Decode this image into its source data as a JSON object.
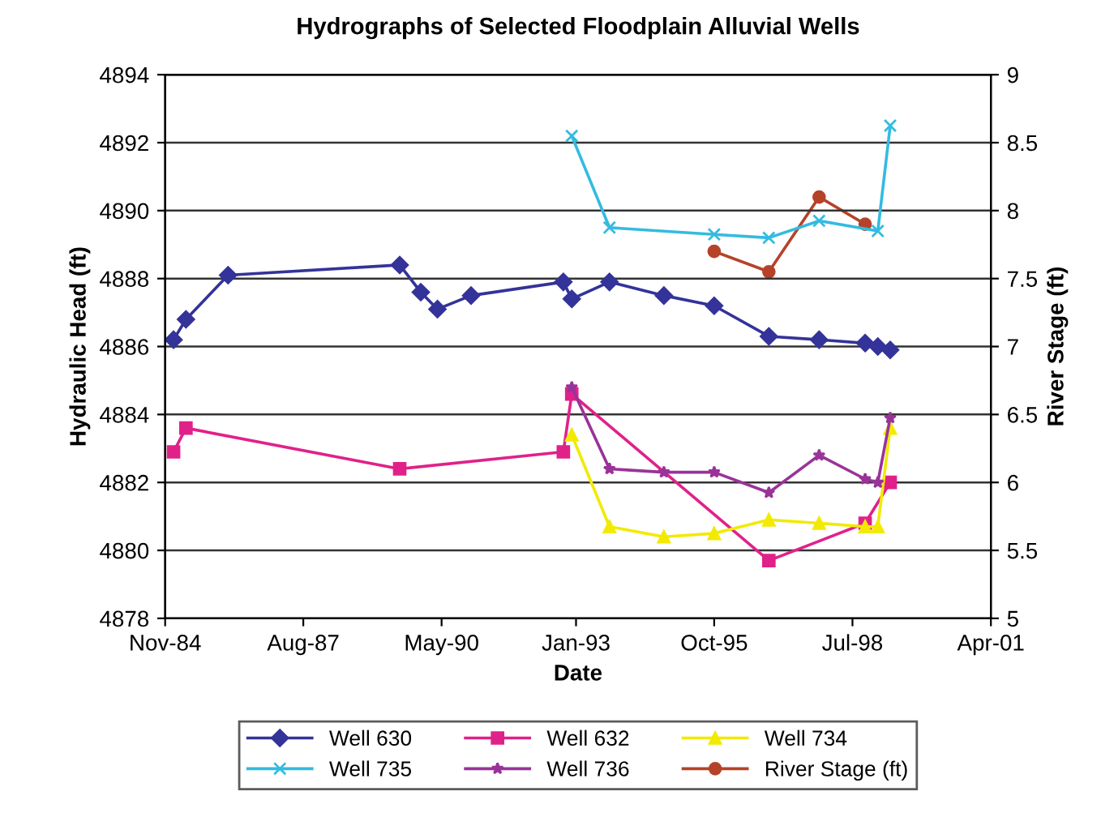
{
  "chart_data": {
    "type": "line",
    "title": "Hydrographs of Selected Floodplain Alluvial Wells",
    "xlabel": "Date",
    "ylabel": "Hydraulic Head (ft)",
    "y2label": "River Stage (ft)",
    "xlim": [
      "1984-11-01",
      "2001-04-01"
    ],
    "xticks": [
      {
        "value": "1984-11-01",
        "label": "Nov-84"
      },
      {
        "value": "1987-08-01",
        "label": "Aug-87"
      },
      {
        "value": "1990-05-01",
        "label": "May-90"
      },
      {
        "value": "1993-01-01",
        "label": "Jan-93"
      },
      {
        "value": "1995-10-01",
        "label": "Oct-95"
      },
      {
        "value": "1998-07-01",
        "label": "Jul-98"
      },
      {
        "value": "2001-04-01",
        "label": "Apr-01"
      }
    ],
    "ylim": [
      4878,
      4894
    ],
    "yticks": [
      4878,
      4880,
      4882,
      4884,
      4886,
      4888,
      4890,
      4892,
      4894
    ],
    "y2lim": [
      5,
      9
    ],
    "y2ticks": [
      5,
      5.5,
      6,
      6.5,
      7,
      7.5,
      8,
      8.5,
      9
    ],
    "grid": "y",
    "legend": "bottom",
    "line_style": "solid",
    "series": [
      {
        "name": "Well 630",
        "color": "#333399",
        "marker": "diamond",
        "x": [
          "1985-01",
          "1985-04",
          "1986-02",
          "1989-07",
          "1989-12",
          "1990-04",
          "1990-12",
          "1992-10",
          "1992-12",
          "1993-09",
          "1994-10",
          "1995-10",
          "1996-11",
          "1997-11",
          "1998-10",
          "1999-01",
          "1999-04"
        ],
        "values": [
          4886.2,
          4886.8,
          4888.1,
          4888.4,
          4887.6,
          4887.1,
          4887.5,
          4887.9,
          4887.4,
          4887.9,
          4887.5,
          4887.2,
          4886.3,
          4886.2,
          4886.1,
          4886.0,
          4885.9
        ]
      },
      {
        "name": "Well 632",
        "color": "#e0218a",
        "marker": "square",
        "x": [
          "1985-01",
          "1985-04",
          "1989-07",
          "1992-10",
          "1992-12",
          "1996-11",
          "1998-10",
          "1999-04"
        ],
        "values": [
          4882.9,
          4883.6,
          4882.4,
          4882.9,
          4884.6,
          4879.7,
          4880.8,
          4882.0
        ]
      },
      {
        "name": "Well 734",
        "color": "#f2ea00",
        "marker": "triangle",
        "x": [
          "1992-12",
          "1993-09",
          "1994-10",
          "1995-10",
          "1996-11",
          "1997-11",
          "1998-10",
          "1999-01",
          "1999-04"
        ],
        "values": [
          4883.4,
          4880.7,
          4880.4,
          4880.5,
          4880.9,
          4880.8,
          4880.7,
          4880.7,
          4883.6
        ]
      },
      {
        "name": "Well 735",
        "color": "#33bbe0",
        "marker": "cross",
        "x": [
          "1992-12",
          "1993-09",
          "1995-10",
          "1996-11",
          "1997-11",
          "1999-01",
          "1999-04"
        ],
        "values": [
          4892.2,
          4889.5,
          4889.3,
          4889.2,
          4889.7,
          4889.4,
          4892.5
        ]
      },
      {
        "name": "Well 736",
        "color": "#993399",
        "marker": "star",
        "x": [
          "1992-12",
          "1993-09",
          "1994-10",
          "1995-10",
          "1996-11",
          "1997-11",
          "1998-10",
          "1999-01",
          "1999-04"
        ],
        "values": [
          4884.8,
          4882.4,
          4882.3,
          4882.3,
          4881.7,
          4882.8,
          4882.1,
          4882.0,
          4883.9
        ]
      },
      {
        "name": "River Stage (ft)",
        "color": "#b5432a",
        "marker": "circle",
        "axis": "y2",
        "x": [
          "1995-10",
          "1996-11",
          "1997-11",
          "1998-10"
        ],
        "values": [
          7.7,
          7.55,
          8.1,
          7.9
        ]
      }
    ]
  }
}
